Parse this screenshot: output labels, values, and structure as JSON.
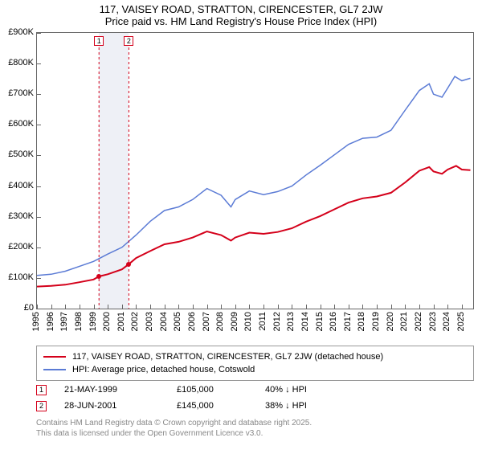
{
  "title_line1": "117, VAISEY ROAD, STRATTON, CIRENCESTER, GL7 2JW",
  "title_line2": "Price paid vs. HM Land Registry's House Price Index (HPI)",
  "chart": {
    "type": "line",
    "background_color": "#ffffff",
    "border_color": "#666666",
    "x_years": [
      1995,
      1996,
      1997,
      1998,
      1999,
      2000,
      2001,
      2002,
      2003,
      2004,
      2005,
      2006,
      2007,
      2008,
      2009,
      2010,
      2011,
      2012,
      2013,
      2014,
      2015,
      2016,
      2017,
      2018,
      2019,
      2020,
      2021,
      2022,
      2023,
      2024,
      2025
    ],
    "xlim": [
      1995,
      2025.8
    ],
    "ylim": [
      0,
      900000
    ],
    "ytick_step": 100000,
    "yticks": [
      "£0",
      "£100K",
      "£200K",
      "£300K",
      "£400K",
      "£500K",
      "£600K",
      "£700K",
      "£800K",
      "£900K"
    ],
    "label_fontsize": 11,
    "shade": {
      "start_year": 1999.38,
      "end_year": 2001.49,
      "color": "#eef0f6"
    },
    "series": [
      {
        "name": "property",
        "color": "#d4001a",
        "width": 2,
        "points": [
          [
            1995,
            72000
          ],
          [
            1996,
            74000
          ],
          [
            1997,
            78000
          ],
          [
            1998,
            86000
          ],
          [
            1999,
            95000
          ],
          [
            1999.38,
            105000
          ],
          [
            2000,
            112000
          ],
          [
            2001,
            128000
          ],
          [
            2001.49,
            145000
          ],
          [
            2002,
            165000
          ],
          [
            2003,
            188000
          ],
          [
            2004,
            210000
          ],
          [
            2005,
            218000
          ],
          [
            2006,
            232000
          ],
          [
            2007,
            252000
          ],
          [
            2008,
            240000
          ],
          [
            2008.7,
            222000
          ],
          [
            2009,
            232000
          ],
          [
            2010,
            248000
          ],
          [
            2011,
            244000
          ],
          [
            2012,
            250000
          ],
          [
            2013,
            262000
          ],
          [
            2014,
            284000
          ],
          [
            2015,
            302000
          ],
          [
            2016,
            324000
          ],
          [
            2017,
            346000
          ],
          [
            2018,
            360000
          ],
          [
            2019,
            366000
          ],
          [
            2020,
            378000
          ],
          [
            2021,
            412000
          ],
          [
            2022,
            450000
          ],
          [
            2022.7,
            462000
          ],
          [
            2023,
            448000
          ],
          [
            2023.6,
            440000
          ],
          [
            2024,
            454000
          ],
          [
            2024.6,
            466000
          ],
          [
            2025,
            454000
          ],
          [
            2025.6,
            452000
          ]
        ]
      },
      {
        "name": "hpi",
        "color": "#5b7bd5",
        "width": 1.5,
        "points": [
          [
            1995,
            108000
          ],
          [
            1996,
            112000
          ],
          [
            1997,
            122000
          ],
          [
            1998,
            138000
          ],
          [
            1999,
            154000
          ],
          [
            2000,
            178000
          ],
          [
            2001,
            200000
          ],
          [
            2002,
            240000
          ],
          [
            2003,
            285000
          ],
          [
            2004,
            320000
          ],
          [
            2005,
            332000
          ],
          [
            2006,
            356000
          ],
          [
            2007,
            392000
          ],
          [
            2008,
            370000
          ],
          [
            2008.7,
            332000
          ],
          [
            2009,
            356000
          ],
          [
            2010,
            384000
          ],
          [
            2011,
            372000
          ],
          [
            2012,
            382000
          ],
          [
            2013,
            400000
          ],
          [
            2014,
            436000
          ],
          [
            2015,
            468000
          ],
          [
            2016,
            502000
          ],
          [
            2017,
            536000
          ],
          [
            2018,
            556000
          ],
          [
            2019,
            560000
          ],
          [
            2020,
            582000
          ],
          [
            2021,
            648000
          ],
          [
            2022,
            712000
          ],
          [
            2022.7,
            734000
          ],
          [
            2023,
            700000
          ],
          [
            2023.6,
            690000
          ],
          [
            2024,
            720000
          ],
          [
            2024.5,
            758000
          ],
          [
            2025,
            744000
          ],
          [
            2025.6,
            752000
          ]
        ]
      }
    ],
    "sale_dots": [
      {
        "year": 1999.38,
        "value": 105000,
        "color": "#d4001a"
      },
      {
        "year": 2001.49,
        "value": 145000,
        "color": "#d4001a"
      }
    ],
    "markers": [
      {
        "label": "1",
        "year": 1999.38,
        "border": "#d4001a",
        "dash": "#d4001a"
      },
      {
        "label": "2",
        "year": 2001.49,
        "border": "#d4001a",
        "dash": "#d4001a"
      }
    ]
  },
  "legend": {
    "border_color": "#999999",
    "items": [
      {
        "color": "#d4001a",
        "label": "117, VAISEY ROAD, STRATTON, CIRENCESTER, GL7 2JW (detached house)"
      },
      {
        "color": "#5b7bd5",
        "label": "HPI: Average price, detached house, Cotswold"
      }
    ]
  },
  "sales": [
    {
      "idx": "1",
      "border": "#d4001a",
      "date": "21-MAY-1999",
      "price": "£105,000",
      "delta": "40% ↓ HPI"
    },
    {
      "idx": "2",
      "border": "#d4001a",
      "date": "28-JUN-2001",
      "price": "£145,000",
      "delta": "38% ↓ HPI"
    }
  ],
  "footer_line1": "Contains HM Land Registry data © Crown copyright and database right 2025.",
  "footer_line2": "This data is licensed under the Open Government Licence v3.0."
}
